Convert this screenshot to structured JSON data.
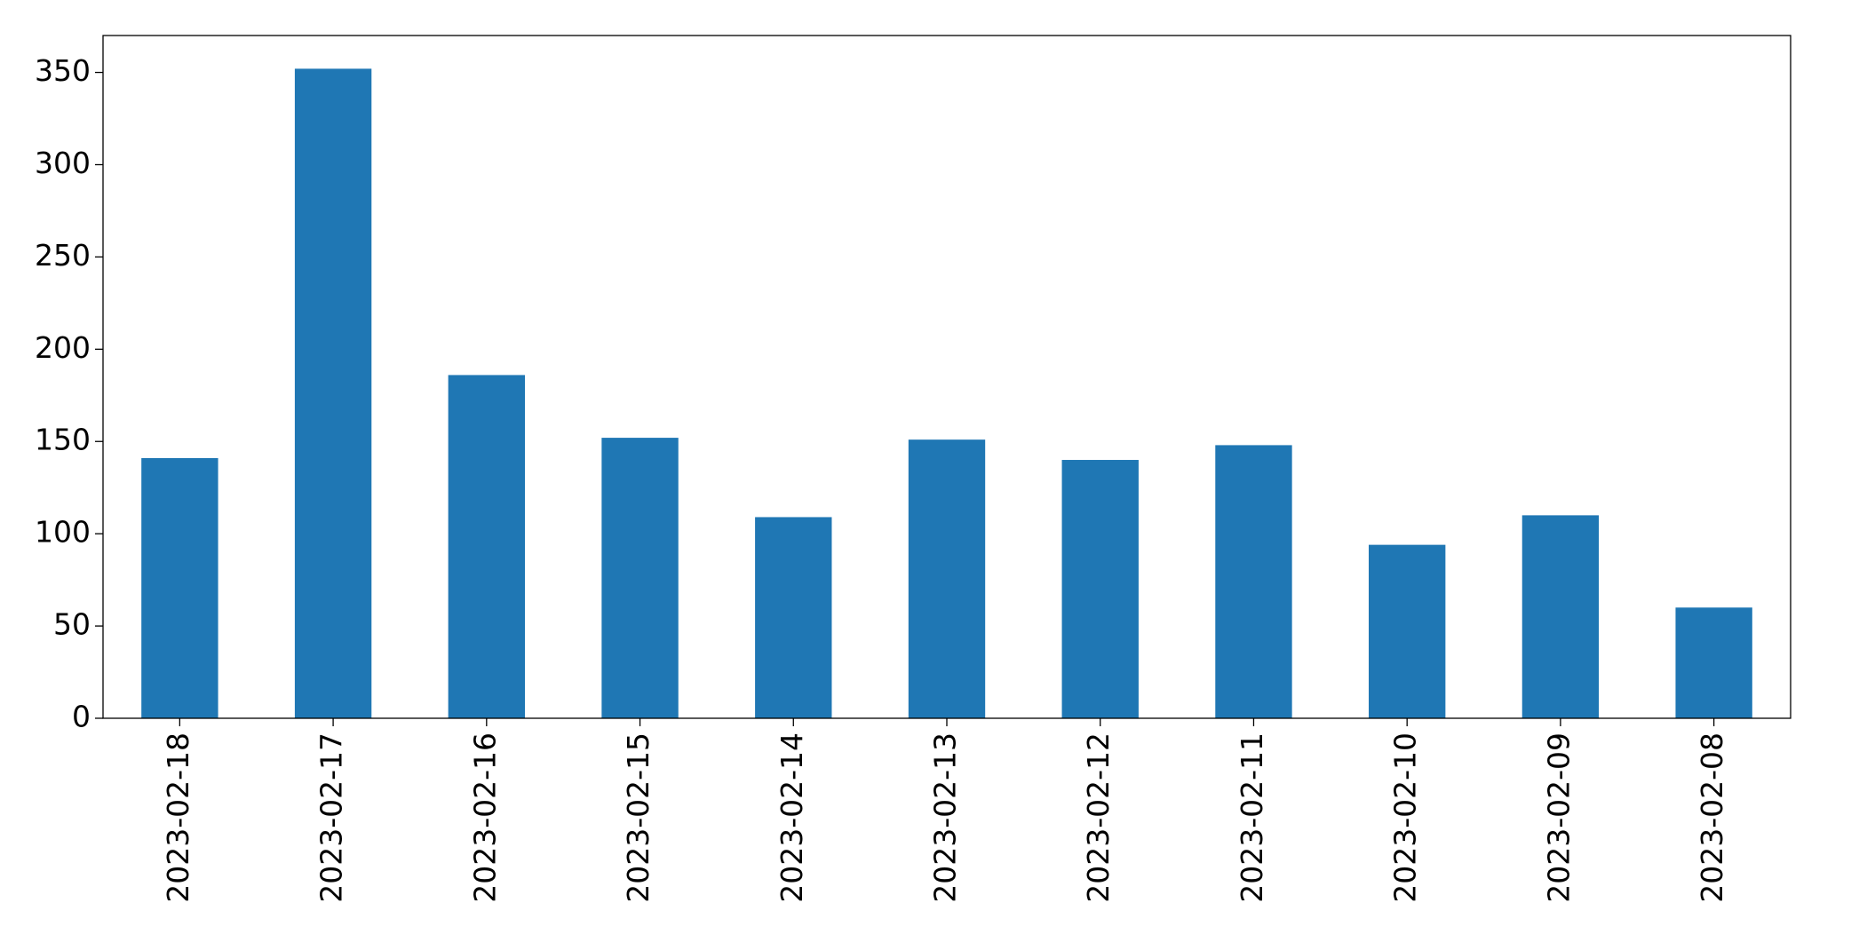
{
  "chart_data": {
    "type": "bar",
    "categories": [
      "2023-02-18",
      "2023-02-17",
      "2023-02-16",
      "2023-02-15",
      "2023-02-14",
      "2023-02-13",
      "2023-02-12",
      "2023-02-11",
      "2023-02-10",
      "2023-02-09",
      "2023-02-08"
    ],
    "values": [
      141,
      352,
      186,
      152,
      109,
      151,
      140,
      148,
      94,
      110,
      60
    ],
    "color": "#1f77b4",
    "ylim": [
      0,
      370
    ],
    "yticks": [
      0,
      50,
      100,
      150,
      200,
      250,
      300,
      350
    ],
    "grid": false
  }
}
